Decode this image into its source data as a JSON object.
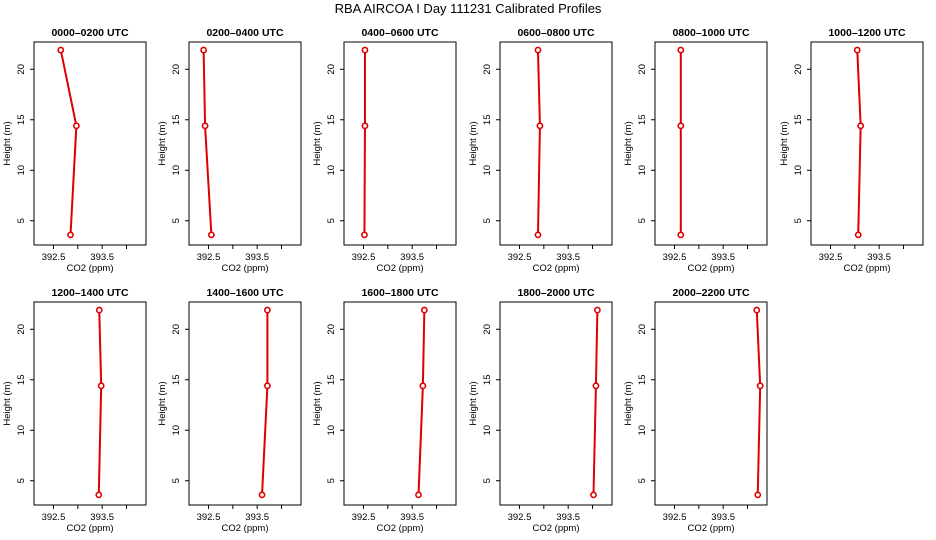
{
  "title": "RBA AIRCOA I  Day 111231  Calibrated Profiles",
  "colors": {
    "profile": "#dd0000",
    "axis": "#000000"
  },
  "chart_data": [
    {
      "type": "line",
      "title": "0000–0200 UTC",
      "xlabel": "CO2 (ppm)",
      "ylabel": "Height (m)",
      "xlim": [
        392.1,
        394.4
      ],
      "ylim": [
        2.6,
        22.7
      ],
      "xticks": [
        "392.5",
        "393.5"
      ],
      "yticks": [
        "5",
        "10",
        "15",
        "20"
      ],
      "x": [
        392.85,
        392.97,
        392.65
      ],
      "y": [
        3.6,
        14.4,
        21.9
      ]
    },
    {
      "type": "line",
      "title": "0200–0400 UTC",
      "xlabel": "CO2 (ppm)",
      "ylabel": "Height (m)",
      "xlim": [
        392.1,
        394.4
      ],
      "ylim": [
        2.6,
        22.7
      ],
      "xticks": [
        "392.5",
        "393.5"
      ],
      "yticks": [
        "5",
        "10",
        "15",
        "20"
      ],
      "x": [
        392.56,
        392.43,
        392.4
      ],
      "y": [
        3.6,
        14.4,
        21.9
      ]
    },
    {
      "type": "line",
      "title": "0400–0600 UTC",
      "xlabel": "CO2 (ppm)",
      "ylabel": "Height (m)",
      "xlim": [
        392.1,
        394.4
      ],
      "ylim": [
        2.6,
        22.7
      ],
      "xticks": [
        "392.5",
        "393.5"
      ],
      "yticks": [
        "5",
        "10",
        "15",
        "20"
      ],
      "x": [
        392.52,
        392.53,
        392.53
      ],
      "y": [
        3.6,
        14.4,
        21.9
      ]
    },
    {
      "type": "line",
      "title": "0600–0800 UTC",
      "xlabel": "CO2 (ppm)",
      "ylabel": "Height (m)",
      "xlim": [
        392.1,
        394.4
      ],
      "ylim": [
        2.6,
        22.7
      ],
      "xticks": [
        "392.5",
        "393.5"
      ],
      "yticks": [
        "5",
        "10",
        "15",
        "20"
      ],
      "x": [
        392.88,
        392.92,
        392.88
      ],
      "y": [
        3.6,
        14.4,
        21.9
      ]
    },
    {
      "type": "line",
      "title": "0800–1000 UTC",
      "xlabel": "CO2 (ppm)",
      "ylabel": "Height (m)",
      "xlim": [
        392.1,
        394.4
      ],
      "ylim": [
        2.6,
        22.7
      ],
      "xticks": [
        "392.5",
        "393.5"
      ],
      "yticks": [
        "5",
        "10",
        "15",
        "20"
      ],
      "x": [
        392.63,
        392.63,
        392.63
      ],
      "y": [
        3.6,
        14.4,
        21.9
      ]
    },
    {
      "type": "line",
      "title": "1000–1200 UTC",
      "xlabel": "CO2 (ppm)",
      "ylabel": "Height (m)",
      "xlim": [
        392.1,
        394.4
      ],
      "ylim": [
        2.6,
        22.7
      ],
      "xticks": [
        "392.5",
        "393.5"
      ],
      "yticks": [
        "5",
        "10",
        "15",
        "20"
      ],
      "x": [
        393.07,
        393.12,
        393.05
      ],
      "y": [
        3.6,
        14.4,
        21.9
      ]
    },
    {
      "type": "line",
      "title": "1200–1400 UTC",
      "xlabel": "CO2 (ppm)",
      "ylabel": "Height (m)",
      "xlim": [
        392.1,
        394.4
      ],
      "ylim": [
        2.6,
        22.7
      ],
      "xticks": [
        "392.5",
        "393.5"
      ],
      "yticks": [
        "5",
        "10",
        "15",
        "20"
      ],
      "x": [
        393.43,
        393.48,
        393.44
      ],
      "y": [
        3.6,
        14.4,
        21.9
      ]
    },
    {
      "type": "line",
      "title": "1400–1600 UTC",
      "xlabel": "CO2 (ppm)",
      "ylabel": "Height (m)",
      "xlim": [
        392.1,
        394.4
      ],
      "ylim": [
        2.6,
        22.7
      ],
      "xticks": [
        "392.5",
        "393.5"
      ],
      "yticks": [
        "5",
        "10",
        "15",
        "20"
      ],
      "x": [
        393.6,
        393.71,
        393.71
      ],
      "y": [
        3.6,
        14.4,
        21.9
      ]
    },
    {
      "type": "line",
      "title": "1600–1800 UTC",
      "xlabel": "CO2 (ppm)",
      "ylabel": "Height (m)",
      "xlim": [
        392.1,
        394.4
      ],
      "ylim": [
        2.6,
        22.7
      ],
      "xticks": [
        "392.5",
        "393.5"
      ],
      "yticks": [
        "5",
        "10",
        "15",
        "20"
      ],
      "x": [
        393.63,
        393.72,
        393.75
      ],
      "y": [
        3.6,
        14.4,
        21.9
      ]
    },
    {
      "type": "line",
      "title": "1800–2000 UTC",
      "xlabel": "CO2 (ppm)",
      "ylabel": "Height (m)",
      "xlim": [
        392.1,
        394.4
      ],
      "ylim": [
        2.6,
        22.7
      ],
      "xticks": [
        "392.5",
        "393.5"
      ],
      "yticks": [
        "5",
        "10",
        "15",
        "20"
      ],
      "x": [
        394.02,
        394.07,
        394.1
      ],
      "y": [
        3.6,
        14.4,
        21.9
      ]
    },
    {
      "type": "line",
      "title": "2000–2200 UTC",
      "xlabel": "CO2 (ppm)",
      "ylabel": "Height (m)",
      "xlim": [
        392.1,
        394.4
      ],
      "ylim": [
        2.6,
        22.7
      ],
      "xticks": [
        "392.5",
        "393.5"
      ],
      "yticks": [
        "5",
        "10",
        "15",
        "20"
      ],
      "x": [
        394.21,
        394.26,
        394.19
      ],
      "y": [
        3.6,
        14.4,
        21.9
      ]
    }
  ]
}
